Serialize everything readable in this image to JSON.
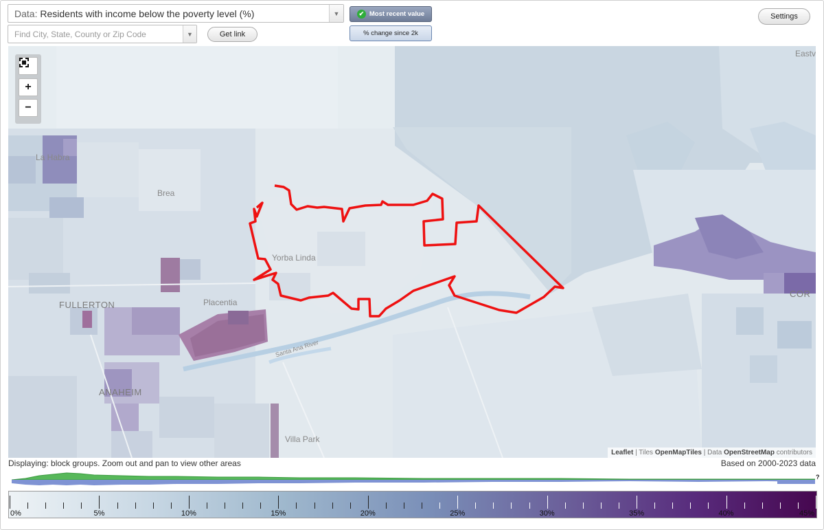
{
  "data_select": {
    "label": "Data:",
    "value": "Residents with income below the poverty level (%)"
  },
  "location_search": {
    "placeholder": "Find City, State, County or Zip Code"
  },
  "buttons": {
    "get_link": "Get link",
    "settings": "Settings"
  },
  "mode_toggle": {
    "most_recent": "Most recent value",
    "change_since": "% change since 2k"
  },
  "zoom_controls": {
    "fullscreen_icon": "fullscreen-icon",
    "zoom_in": "+",
    "zoom_out": "−"
  },
  "map_labels": {
    "la_habra": "La Habra",
    "brea": "Brea",
    "yorba_linda": "Yorba Linda",
    "fullerton": "FULLERTON",
    "placentia": "Placentia",
    "anaheim": "ANAHEIM",
    "villa_park": "Villa Park",
    "santa_ana_river": "Santa Ana River",
    "corona": "COR",
    "eastvale": "Eastva"
  },
  "attribution": {
    "leaflet": "Leaflet",
    "sep1": " | Tiles ",
    "tiles": "OpenMapTiles",
    "sep2": " | Data ",
    "data": "OpenStreetMap",
    "contributors": " contributors"
  },
  "status": {
    "displaying": "Displaying: block groups. Zoom out and pan to view other areas",
    "based_on": "Based on 2000-2023 data",
    "hist_help": "?"
  },
  "legend": {
    "labels": [
      "0%",
      "5%",
      "10%",
      "15%",
      "20%",
      "25%",
      "30%",
      "35%",
      "40%",
      "45%"
    ],
    "min": 0,
    "max": 45,
    "unit": "%"
  },
  "colors": {
    "boundary": "#ee1111",
    "legend_low": "#eef3f6",
    "legend_high": "#46074f",
    "hist_current": "#7f93d4",
    "hist_2k": "#57b85a"
  }
}
